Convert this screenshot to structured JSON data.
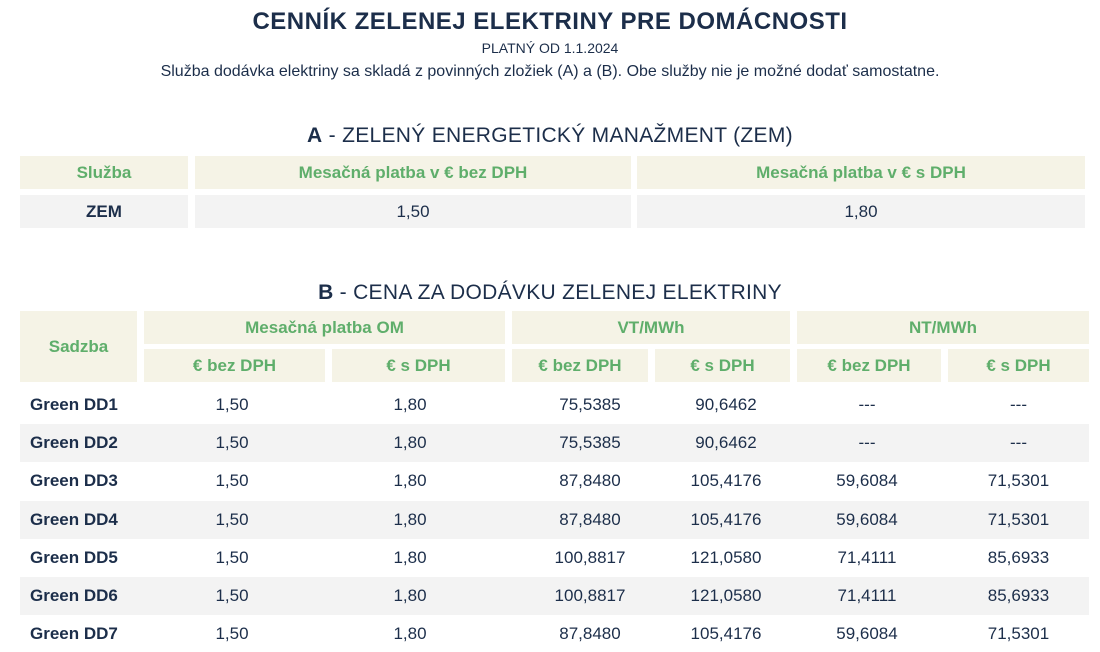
{
  "header": {
    "title": "CENNÍK ZELENEJ ELEKTRINY PRE DOMÁCNOSTI",
    "valid_from": "PLATNÝ OD 1.1.2024",
    "intro": "Služba dodávka elektriny sa skladá z povinných zložiek (A) a (B). Obe služby nie je možné dodať samostatne."
  },
  "section_a": {
    "letter": "A",
    "title": " - ZELENÝ ENERGETICKÝ MANAŽMENT (ZEM)",
    "headers": [
      "Služba",
      "Mesačná platba v € bez DPH",
      "Mesačná platba v € s DPH"
    ],
    "row": {
      "service": "ZEM",
      "without_vat": "1,50",
      "with_vat": "1,80"
    }
  },
  "section_b": {
    "letter": "B",
    "title": " - CENA ZA DODÁVKU ZELENEJ ELEKTRINY",
    "headers": {
      "tariff": "Sadzba",
      "group_om": "Mesačná platba OM",
      "group_vt": "VT/MWh",
      "group_nt": "NT/MWh",
      "without_vat": "€ bez DPH",
      "with_vat": "€ s DPH"
    },
    "rows": [
      {
        "name": "Green DD1",
        "om_bez": "1,50",
        "om_s": "1,80",
        "vt_bez": "75,5385",
        "vt_s": "90,6462",
        "nt_bez": "---",
        "nt_s": "---"
      },
      {
        "name": "Green DD2",
        "om_bez": "1,50",
        "om_s": "1,80",
        "vt_bez": "75,5385",
        "vt_s": "90,6462",
        "nt_bez": "---",
        "nt_s": "---"
      },
      {
        "name": "Green DD3",
        "om_bez": "1,50",
        "om_s": "1,80",
        "vt_bez": "87,8480",
        "vt_s": "105,4176",
        "nt_bez": "59,6084",
        "nt_s": "71,5301"
      },
      {
        "name": "Green DD4",
        "om_bez": "1,50",
        "om_s": "1,80",
        "vt_bez": "87,8480",
        "vt_s": "105,4176",
        "nt_bez": "59,6084",
        "nt_s": "71,5301"
      },
      {
        "name": "Green DD5",
        "om_bez": "1,50",
        "om_s": "1,80",
        "vt_bez": "100,8817",
        "vt_s": "121,0580",
        "nt_bez": "71,4111",
        "nt_s": "85,6933"
      },
      {
        "name": "Green DD6",
        "om_bez": "1,50",
        "om_s": "1,80",
        "vt_bez": "100,8817",
        "vt_s": "121,0580",
        "nt_bez": "71,4111",
        "nt_s": "85,6933"
      },
      {
        "name": "Green DD7",
        "om_bez": "1,50",
        "om_s": "1,80",
        "vt_bez": "87,8480",
        "vt_s": "105,4176",
        "nt_bez": "59,6084",
        "nt_s": "71,5301"
      }
    ]
  }
}
